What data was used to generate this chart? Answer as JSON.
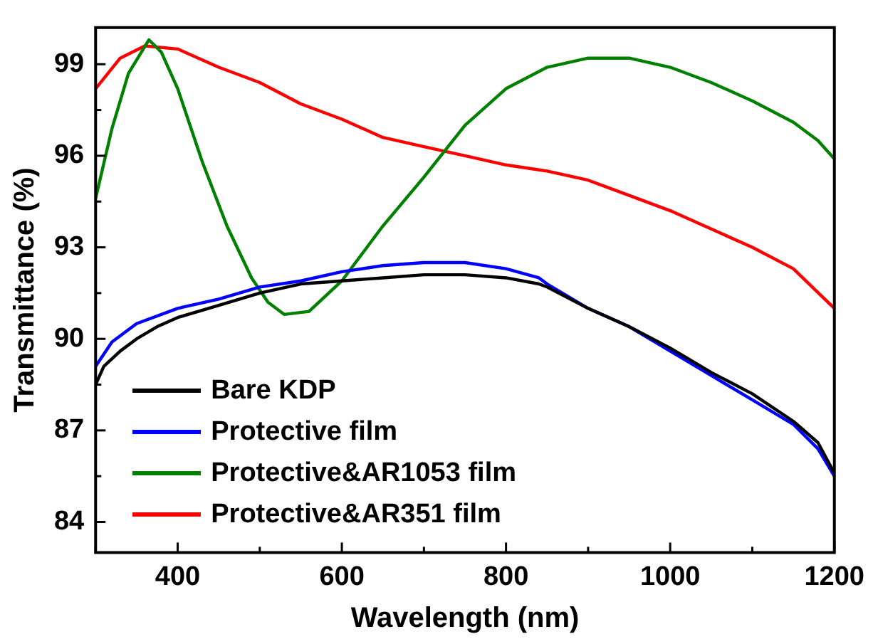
{
  "chart_data": {
    "type": "line",
    "xlabel": "Wavelength (nm)",
    "ylabel": "Transmittance (%)",
    "xlim": [
      300,
      1200
    ],
    "ylim": [
      83,
      100.2
    ],
    "xticks": [
      {
        "value": 300,
        "label": null
      },
      400,
      {
        "value": 500,
        "label": null
      },
      600,
      {
        "value": 700,
        "label": null
      },
      800,
      {
        "value": 900,
        "label": null
      },
      1000,
      {
        "value": 1100,
        "label": null
      },
      1200
    ],
    "yticks": [
      84,
      {
        "value": 85.5,
        "label": null
      },
      87,
      {
        "value": 88.5,
        "label": null
      },
      90,
      {
        "value": 91.5,
        "label": null
      },
      93,
      {
        "value": 94.5,
        "label": null
      },
      96,
      {
        "value": 97.5,
        "label": null
      },
      99
    ],
    "grid": false,
    "legend": "bottom left",
    "marker": "none",
    "line_style": "solid",
    "series": [
      {
        "name": "Bare KDP",
        "color": "#000000",
        "x": [
          300,
          310,
          330,
          350,
          375,
          400,
          450,
          500,
          550,
          600,
          650,
          700,
          750,
          800,
          840,
          850,
          900,
          950,
          1000,
          1050,
          1100,
          1150,
          1180,
          1200
        ],
        "values": [
          88.5,
          89.1,
          89.6,
          90.0,
          90.4,
          90.7,
          91.1,
          91.5,
          91.8,
          91.9,
          92.0,
          92.1,
          92.1,
          92.0,
          91.8,
          91.7,
          91.0,
          90.4,
          89.7,
          88.9,
          88.2,
          87.3,
          86.6,
          85.6
        ]
      },
      {
        "name": "Protective film",
        "color": "#0000ff",
        "x": [
          300,
          320,
          350,
          400,
          450,
          500,
          550,
          600,
          650,
          700,
          750,
          800,
          840,
          850,
          900,
          950,
          1000,
          1050,
          1100,
          1150,
          1180,
          1200
        ],
        "values": [
          89.1,
          89.9,
          90.5,
          91.0,
          91.3,
          91.7,
          91.9,
          92.2,
          92.4,
          92.5,
          92.5,
          92.3,
          92.0,
          91.8,
          91.0,
          90.4,
          89.6,
          88.8,
          88.0,
          87.2,
          86.4,
          85.5
        ]
      },
      {
        "name": "Protective&AR1053 film",
        "color": "#008000",
        "x": [
          300,
          320,
          340,
          365,
          380,
          400,
          430,
          460,
          490,
          510,
          530,
          560,
          600,
          650,
          700,
          750,
          800,
          850,
          900,
          950,
          1000,
          1050,
          1100,
          1150,
          1180,
          1200
        ],
        "values": [
          94.6,
          96.9,
          98.7,
          99.8,
          99.4,
          98.2,
          95.8,
          93.7,
          92.0,
          91.2,
          90.8,
          90.9,
          91.9,
          93.7,
          95.3,
          97.0,
          98.2,
          98.9,
          99.2,
          99.2,
          98.9,
          98.4,
          97.8,
          97.1,
          96.5,
          95.9
        ]
      },
      {
        "name": "Protective&AR351 film",
        "color": "#ff0000",
        "x": [
          300,
          330,
          360,
          400,
          450,
          500,
          550,
          600,
          650,
          700,
          750,
          800,
          850,
          900,
          950,
          1000,
          1050,
          1100,
          1150,
          1200
        ],
        "values": [
          98.2,
          99.2,
          99.6,
          99.5,
          98.9,
          98.4,
          97.7,
          97.2,
          96.6,
          96.3,
          96.0,
          95.7,
          95.5,
          95.2,
          94.7,
          94.2,
          93.6,
          93.0,
          92.3,
          91.0
        ]
      }
    ]
  }
}
